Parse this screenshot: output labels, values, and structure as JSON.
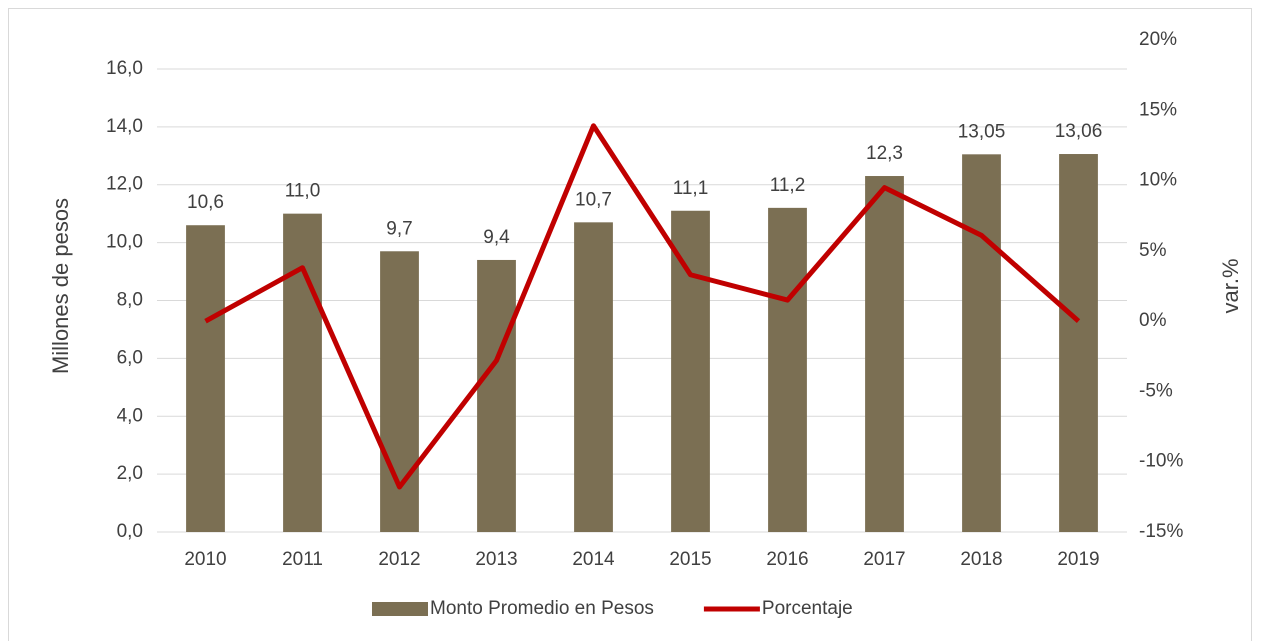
{
  "chart_data": {
    "type": "bar",
    "categories": [
      "2010",
      "2011",
      "2012",
      "2013",
      "2014",
      "2015",
      "2016",
      "2017",
      "2018",
      "2019"
    ],
    "ylabel": "Millones de pesos",
    "y2label": "var.%",
    "ylim": [
      0,
      17
    ],
    "yticks": [
      {
        "value": 0,
        "label": "0,0"
      },
      {
        "value": 2,
        "label": "2,0"
      },
      {
        "value": 4,
        "label": "4,0"
      },
      {
        "value": 6,
        "label": "6,0"
      },
      {
        "value": 8,
        "label": "8,0"
      },
      {
        "value": 10,
        "label": "10,0"
      },
      {
        "value": 12,
        "label": "12,0"
      },
      {
        "value": 14,
        "label": "14,0"
      },
      {
        "value": 16,
        "label": "16,0"
      }
    ],
    "y2lim": [
      -15,
      20
    ],
    "y2ticks": [
      {
        "value": -15,
        "label": "-15%"
      },
      {
        "value": -10,
        "label": "-10%"
      },
      {
        "value": -5,
        "label": "-5%"
      },
      {
        "value": 0,
        "label": "0%"
      },
      {
        "value": 5,
        "label": "5%"
      },
      {
        "value": 10,
        "label": "10%"
      },
      {
        "value": 15,
        "label": "15%"
      },
      {
        "value": 20,
        "label": "20%"
      }
    ],
    "grid": true,
    "legend": "bottom",
    "series": [
      {
        "name": "Monto Promedio en Pesos",
        "type": "bar",
        "color": "#7b6f53",
        "values": [
          10.6,
          11.0,
          9.7,
          9.4,
          10.7,
          11.1,
          11.2,
          12.3,
          13.05,
          13.06
        ],
        "value_labels": [
          "10,6",
          "11,0",
          "9,7",
          "9,4",
          "10,7",
          "11,1",
          "11,2",
          "12,3",
          "13,05",
          "13,06"
        ]
      },
      {
        "name": "Porcentaje",
        "type": "line",
        "color": "#c00000",
        "axis": "y2",
        "values": [
          0,
          3.8,
          -11.8,
          -2.8,
          13.9,
          3.3,
          1.5,
          9.5,
          6.1,
          0
        ]
      }
    ]
  }
}
